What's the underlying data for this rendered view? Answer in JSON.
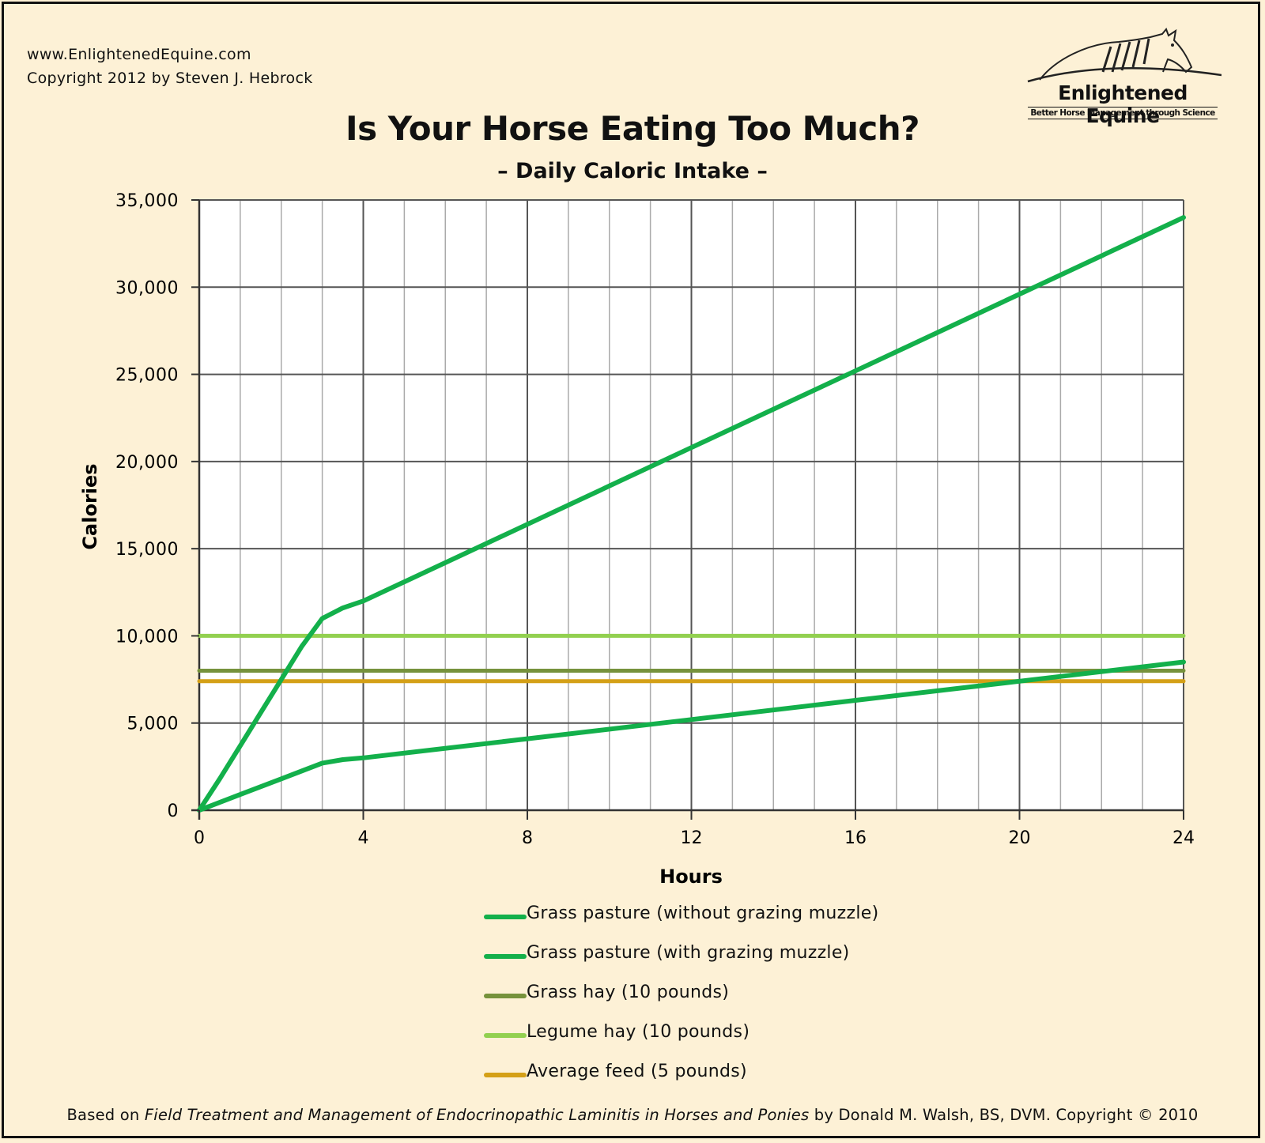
{
  "header": {
    "website": "www.EnlightenedEquine.com",
    "copyright": "Copyright 2012 by Steven J. Hebrock"
  },
  "brand": {
    "name": "Enlightened Equine",
    "tagline": "Better Horse Management through Science"
  },
  "footer": {
    "prefix": "Based on ",
    "book_title": "Field Treatment and Management of Endocrinopathic Laminitis in Horses and Ponies",
    "suffix": " by Donald M. Walsh, BS, DVM. Copyright © 2010"
  },
  "chart_data": {
    "type": "line",
    "title": "Is Your Horse Eating Too Much?",
    "subtitle": "– Daily Caloric Intake –",
    "xlabel": "Hours",
    "ylabel": "Calories",
    "xlim": [
      0,
      24
    ],
    "ylim": [
      0,
      35000
    ],
    "xticks": [
      0,
      4,
      8,
      12,
      16,
      20,
      24
    ],
    "yticks": [
      0,
      5000,
      10000,
      15000,
      20000,
      25000,
      30000,
      35000
    ],
    "ytick_labels": [
      "0",
      "5,000",
      "10,000",
      "15,000",
      "20,000",
      "25,000",
      "30,000",
      "35,000"
    ],
    "grid": true,
    "legend_position": "bottom",
    "series": [
      {
        "name": "Grass pasture (without grazing muzzle)",
        "color": "#13b04b",
        "x": [
          0,
          0.5,
          1,
          1.5,
          2,
          2.5,
          3,
          3.5,
          4,
          8,
          12,
          16,
          20,
          24
        ],
        "y": [
          0,
          1800,
          3700,
          5600,
          7500,
          9400,
          11000,
          11600,
          12000,
          16400,
          20800,
          25200,
          29600,
          34000
        ]
      },
      {
        "name": "Grass pasture (with grazing muzzle)",
        "color": "#13b04b",
        "x": [
          0,
          1,
          2,
          3,
          3.5,
          4,
          8,
          12,
          16,
          20,
          24
        ],
        "y": [
          0,
          900,
          1800,
          2700,
          2900,
          3000,
          4100,
          5200,
          6300,
          7400,
          8500
        ]
      },
      {
        "name": "Grass hay (10 pounds)",
        "color": "#76923c",
        "x": [
          0,
          24
        ],
        "y": [
          8000,
          8000
        ]
      },
      {
        "name": "Legume hay (10 pounds)",
        "color": "#92d050",
        "x": [
          0,
          24
        ],
        "y": [
          10000,
          10000
        ]
      },
      {
        "name": "Average feed (5 pounds)",
        "color": "#d4a017",
        "x": [
          0,
          24
        ],
        "y": [
          7400,
          7400
        ]
      }
    ]
  }
}
